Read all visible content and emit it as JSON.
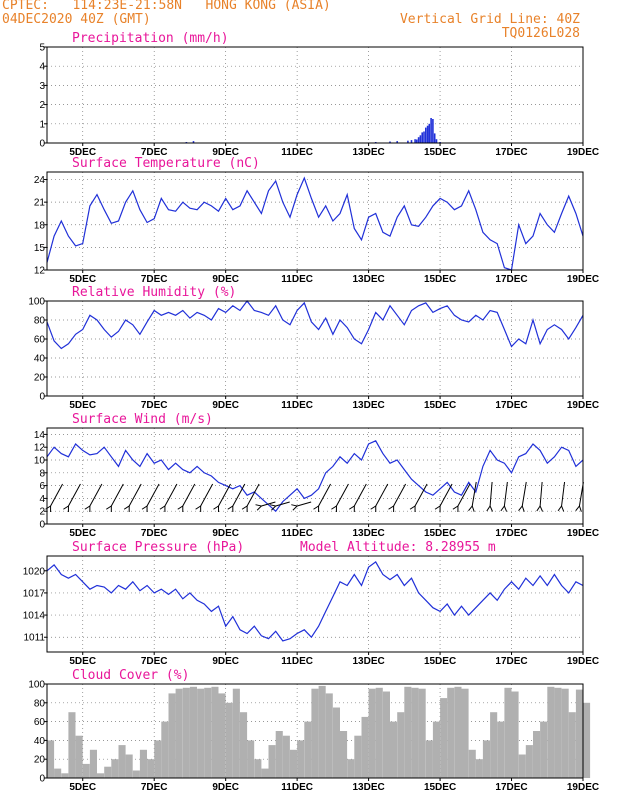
{
  "header": {
    "left1": "CPTEC:   114:23E-21:58N   HONG KONG (ASIA)",
    "left2": "04DEC2020 40Z (GMT)",
    "right1": "Vertical Grid Line: 40Z",
    "right2": "TQ0126L028"
  },
  "colors": {
    "line": "#2030d8",
    "bar": "#2030d8",
    "cloud": "#b0b0b0",
    "title": "#e8169a",
    "header": "#e8822a"
  },
  "x_dates": [
    "5DEC",
    "7DEC",
    "9DEC",
    "11DEC",
    "13DEC",
    "15DEC",
    "17DEC",
    "19DEC"
  ],
  "chart_data": [
    {
      "id": "precip",
      "type": "bar",
      "title": "Precipitation (mm/h)",
      "ylim": [
        0,
        5
      ],
      "yticks": [
        0,
        1,
        2,
        3,
        4,
        5
      ],
      "x": [
        4.0,
        7.9,
        8.1,
        13.2,
        13.6,
        13.8,
        14.1,
        14.2,
        14.3,
        14.35,
        14.4,
        14.45,
        14.5,
        14.55,
        14.6,
        14.65,
        14.7,
        14.75,
        14.8,
        14.85,
        14.9,
        15.0
      ],
      "values": [
        0.02,
        0.05,
        0.1,
        0.05,
        0.08,
        0.1,
        0.12,
        0.15,
        0.2,
        0.18,
        0.3,
        0.4,
        0.55,
        0.6,
        0.8,
        0.9,
        1.0,
        1.3,
        1.25,
        0.5,
        0.2,
        0.05
      ]
    },
    {
      "id": "temp",
      "type": "line",
      "title": "Surface Temperature (nC)",
      "ylim": [
        12,
        25
      ],
      "yticks": [
        12,
        15,
        18,
        21,
        24
      ],
      "x": [
        4.0,
        4.2,
        4.4,
        4.6,
        4.8,
        5.0,
        5.2,
        5.4,
        5.6,
        5.8,
        6.0,
        6.2,
        6.4,
        6.6,
        6.8,
        7.0,
        7.2,
        7.4,
        7.6,
        7.8,
        8.0,
        8.2,
        8.4,
        8.6,
        8.8,
        9.0,
        9.2,
        9.4,
        9.6,
        9.8,
        10.0,
        10.2,
        10.4,
        10.6,
        10.8,
        11.0,
        11.2,
        11.4,
        11.6,
        11.8,
        12.0,
        12.2,
        12.4,
        12.6,
        12.8,
        13.0,
        13.2,
        13.4,
        13.6,
        13.8,
        14.0,
        14.2,
        14.4,
        14.6,
        14.8,
        15.0,
        15.2,
        15.4,
        15.6,
        15.8,
        16.0,
        16.2,
        16.4,
        16.6,
        16.8,
        17.0,
        17.2,
        17.4,
        17.6,
        17.8,
        18.0,
        18.2,
        18.4,
        18.6,
        18.8,
        19.0
      ],
      "values": [
        13.0,
        16.5,
        18.5,
        16.5,
        15.2,
        15.5,
        20.5,
        22.0,
        20.0,
        18.2,
        18.5,
        21.0,
        22.5,
        20.0,
        18.3,
        18.8,
        21.5,
        20.0,
        19.8,
        21.0,
        20.2,
        20.0,
        21.0,
        20.5,
        19.8,
        21.5,
        20.0,
        20.5,
        22.5,
        21.0,
        19.5,
        22.5,
        23.8,
        21.0,
        19.0,
        22.0,
        24.2,
        21.5,
        19.0,
        20.5,
        18.5,
        19.5,
        22.0,
        17.5,
        16.0,
        19.0,
        19.5,
        17.0,
        16.5,
        19.0,
        20.5,
        18.0,
        17.8,
        19.0,
        20.5,
        21.5,
        21.0,
        20.0,
        20.5,
        22.5,
        20.0,
        17.0,
        16.0,
        15.5,
        12.3,
        11.5,
        18.0,
        15.5,
        16.5,
        19.5,
        18.0,
        17.0,
        19.5,
        21.8,
        19.5,
        16.5
      ]
    },
    {
      "id": "rh",
      "type": "line",
      "title": "Relative Humidity (%)",
      "ylim": [
        0,
        100
      ],
      "yticks": [
        0,
        20,
        40,
        60,
        80,
        100
      ],
      "x": [
        4.0,
        4.2,
        4.4,
        4.6,
        4.8,
        5.0,
        5.2,
        5.4,
        5.6,
        5.8,
        6.0,
        6.2,
        6.4,
        6.6,
        6.8,
        7.0,
        7.2,
        7.4,
        7.6,
        7.8,
        8.0,
        8.2,
        8.4,
        8.6,
        8.8,
        9.0,
        9.2,
        9.4,
        9.6,
        9.8,
        10.0,
        10.2,
        10.4,
        10.6,
        10.8,
        11.0,
        11.2,
        11.4,
        11.6,
        11.8,
        12.0,
        12.2,
        12.4,
        12.6,
        12.8,
        13.0,
        13.2,
        13.4,
        13.6,
        13.8,
        14.0,
        14.2,
        14.4,
        14.6,
        14.8,
        15.0,
        15.2,
        15.4,
        15.6,
        15.8,
        16.0,
        16.2,
        16.4,
        16.6,
        16.8,
        17.0,
        17.2,
        17.4,
        17.6,
        17.8,
        18.0,
        18.2,
        18.4,
        18.6,
        18.8,
        19.0
      ],
      "values": [
        78,
        58,
        50,
        55,
        65,
        70,
        85,
        80,
        70,
        62,
        68,
        80,
        75,
        65,
        78,
        90,
        85,
        88,
        85,
        90,
        82,
        88,
        85,
        80,
        92,
        88,
        95,
        90,
        100,
        90,
        88,
        85,
        95,
        80,
        75,
        90,
        98,
        78,
        70,
        82,
        65,
        80,
        72,
        60,
        55,
        70,
        88,
        80,
        95,
        85,
        75,
        90,
        95,
        98,
        88,
        92,
        95,
        85,
        80,
        78,
        85,
        80,
        90,
        88,
        70,
        52,
        60,
        55,
        80,
        55,
        70,
        75,
        70,
        60,
        72,
        85
      ]
    },
    {
      "id": "wind",
      "type": "line",
      "title": "Surface Wind (m/s)",
      "ylim": [
        0,
        15
      ],
      "yticks": [
        0,
        2,
        4,
        6,
        8,
        10,
        12,
        14
      ],
      "x": [
        4.0,
        4.2,
        4.4,
        4.6,
        4.8,
        5.0,
        5.2,
        5.4,
        5.6,
        5.8,
        6.0,
        6.2,
        6.4,
        6.6,
        6.8,
        7.0,
        7.2,
        7.4,
        7.6,
        7.8,
        8.0,
        8.2,
        8.4,
        8.6,
        8.8,
        9.0,
        9.2,
        9.4,
        9.6,
        9.8,
        10.0,
        10.2,
        10.4,
        10.6,
        10.8,
        11.0,
        11.2,
        11.4,
        11.6,
        11.8,
        12.0,
        12.2,
        12.4,
        12.6,
        12.8,
        13.0,
        13.2,
        13.4,
        13.6,
        13.8,
        14.0,
        14.2,
        14.4,
        14.6,
        14.8,
        15.0,
        15.2,
        15.4,
        15.6,
        15.8,
        16.0,
        16.2,
        16.4,
        16.6,
        16.8,
        17.0,
        17.2,
        17.4,
        17.6,
        17.8,
        18.0,
        18.2,
        18.4,
        18.6,
        18.8,
        19.0
      ],
      "values": [
        10.5,
        12.0,
        11.0,
        10.5,
        12.5,
        11.5,
        10.8,
        11.0,
        12.0,
        10.5,
        9.0,
        11.5,
        10.0,
        9.0,
        11.0,
        9.5,
        10.0,
        8.5,
        9.5,
        8.5,
        8.0,
        9.0,
        8.0,
        7.5,
        6.5,
        6.0,
        5.5,
        6.0,
        4.5,
        5.0,
        4.0,
        3.0,
        2.0,
        3.5,
        4.5,
        5.5,
        4.0,
        4.5,
        5.5,
        8.0,
        9.0,
        10.5,
        9.5,
        11.0,
        10.0,
        12.5,
        13.0,
        11.0,
        9.5,
        10.0,
        8.5,
        7.0,
        6.0,
        5.0,
        4.5,
        5.5,
        6.5,
        5.0,
        4.5,
        6.5,
        5.0,
        9.0,
        11.5,
        10.0,
        9.5,
        8.0,
        10.5,
        11.0,
        12.5,
        11.5,
        9.5,
        10.5,
        12.0,
        11.5,
        9.0,
        10.0
      ]
    },
    {
      "id": "pres",
      "type": "line",
      "title": "Surface Pressure (hPa)",
      "subtitle": "Model Altitude: 8.28955 m",
      "ylim": [
        1009,
        1022
      ],
      "yticks": [
        1011,
        1014,
        1017,
        1020
      ],
      "x": [
        4.0,
        4.2,
        4.4,
        4.6,
        4.8,
        5.0,
        5.2,
        5.4,
        5.6,
        5.8,
        6.0,
        6.2,
        6.4,
        6.6,
        6.8,
        7.0,
        7.2,
        7.4,
        7.6,
        7.8,
        8.0,
        8.2,
        8.4,
        8.6,
        8.8,
        9.0,
        9.2,
        9.4,
        9.6,
        9.8,
        10.0,
        10.2,
        10.4,
        10.6,
        10.8,
        11.0,
        11.2,
        11.4,
        11.6,
        11.8,
        12.0,
        12.2,
        12.4,
        12.6,
        12.8,
        13.0,
        13.2,
        13.4,
        13.6,
        13.8,
        14.0,
        14.2,
        14.4,
        14.6,
        14.8,
        15.0,
        15.2,
        15.4,
        15.6,
        15.8,
        16.0,
        16.2,
        16.4,
        16.6,
        16.8,
        17.0,
        17.2,
        17.4,
        17.6,
        17.8,
        18.0,
        18.2,
        18.4,
        18.6,
        18.8,
        19.0
      ],
      "values": [
        1020.0,
        1020.8,
        1019.5,
        1019.0,
        1019.5,
        1018.5,
        1017.5,
        1018.0,
        1017.8,
        1017.0,
        1018.0,
        1017.5,
        1018.5,
        1017.3,
        1018.0,
        1017.0,
        1017.5,
        1016.8,
        1017.5,
        1016.2,
        1017.0,
        1016.0,
        1015.5,
        1014.5,
        1015.2,
        1012.5,
        1013.8,
        1012.0,
        1011.5,
        1012.5,
        1011.2,
        1010.8,
        1011.8,
        1010.5,
        1010.8,
        1011.5,
        1012.0,
        1011.0,
        1012.5,
        1014.5,
        1016.5,
        1018.5,
        1018.0,
        1019.5,
        1018.0,
        1020.5,
        1021.2,
        1019.5,
        1018.8,
        1019.5,
        1018.0,
        1019.0,
        1017.0,
        1016.0,
        1015.0,
        1014.5,
        1015.5,
        1014.0,
        1015.2,
        1014.0,
        1015.0,
        1016.0,
        1017.0,
        1016.0,
        1017.5,
        1018.5,
        1017.5,
        1019.0,
        1018.0,
        1019.3,
        1018.0,
        1019.5,
        1018.0,
        1017.0,
        1018.5,
        1018.0
      ]
    },
    {
      "id": "cloud",
      "type": "bar",
      "title": "Cloud Cover (%)",
      "ylim": [
        0,
        100
      ],
      "yticks": [
        0,
        20,
        40,
        60,
        80,
        100
      ],
      "x": [
        4.0,
        4.2,
        4.4,
        4.6,
        4.8,
        5.0,
        5.2,
        5.4,
        5.6,
        5.8,
        6.0,
        6.2,
        6.4,
        6.6,
        6.8,
        7.0,
        7.2,
        7.4,
        7.6,
        7.8,
        8.0,
        8.2,
        8.4,
        8.6,
        8.8,
        9.0,
        9.2,
        9.4,
        9.6,
        9.8,
        10.0,
        10.2,
        10.4,
        10.6,
        10.8,
        11.0,
        11.2,
        11.4,
        11.6,
        11.8,
        12.0,
        12.2,
        12.4,
        12.6,
        12.8,
        13.0,
        13.2,
        13.4,
        13.6,
        13.8,
        14.0,
        14.2,
        14.4,
        14.6,
        14.8,
        15.0,
        15.2,
        15.4,
        15.6,
        15.8,
        16.0,
        16.2,
        16.4,
        16.6,
        16.8,
        17.0,
        17.2,
        17.4,
        17.6,
        17.8,
        18.0,
        18.2,
        18.4,
        18.6,
        18.8,
        19.0
      ],
      "values": [
        40,
        10,
        5,
        70,
        45,
        15,
        30,
        5,
        12,
        20,
        35,
        25,
        8,
        30,
        20,
        40,
        60,
        90,
        95,
        96,
        97,
        95,
        96,
        97,
        90,
        80,
        95,
        70,
        40,
        20,
        10,
        35,
        50,
        45,
        30,
        40,
        60,
        95,
        98,
        90,
        75,
        50,
        20,
        45,
        65,
        95,
        96,
        92,
        60,
        70,
        97,
        96,
        95,
        40,
        60,
        85,
        96,
        97,
        95,
        30,
        20,
        40,
        70,
        60,
        96,
        92,
        25,
        35,
        50,
        60,
        97,
        96,
        95,
        70,
        94,
        80
      ]
    }
  ]
}
